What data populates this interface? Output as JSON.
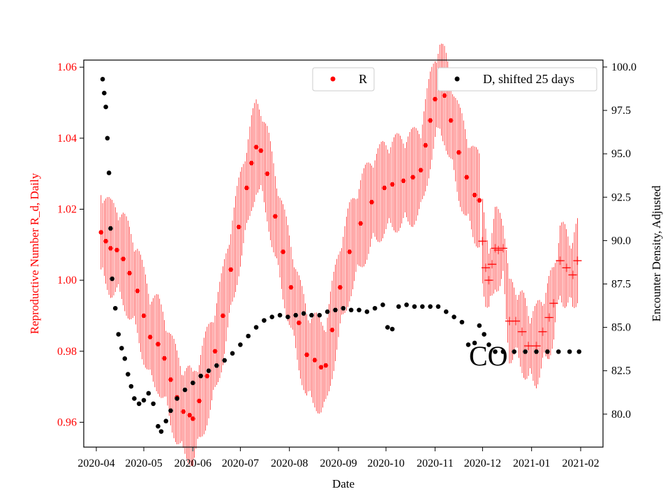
{
  "chart_data": {
    "type": "scatter",
    "xlabel": "Date",
    "ylabel_left": "Reproductive Number R_d, Daily",
    "ylabel_right": "Encounter Density, Adjusted",
    "annotation": "CO",
    "x_range": [
      "2020-04-01",
      "2021-02-01"
    ],
    "ylim_left": [
      0.953,
      1.062
    ],
    "ylim_right": [
      78.1,
      100.4
    ],
    "x_ticks": [
      "2020-04",
      "2020-05",
      "2020-06",
      "2020-07",
      "2020-08",
      "2020-09",
      "2020-10",
      "2020-11",
      "2020-12",
      "2021-01",
      "2021-02"
    ],
    "y_ticks_left": [
      0.96,
      0.98,
      1.0,
      1.02,
      1.04,
      1.06
    ],
    "y_ticks_right": [
      80.0,
      82.5,
      85.0,
      87.5,
      90.0,
      92.5,
      95.0,
      97.5,
      100.0
    ],
    "colors": {
      "R": "#ff0000",
      "D": "#000000",
      "axis_left": "#ff0000"
    },
    "legend": {
      "R": "R",
      "D": "D, shifted 25 days",
      "placement": "top"
    },
    "series": [
      {
        "name": "R",
        "axis": "left",
        "marker": "dot",
        "points": [
          [
            "2020-04-04",
            1.0135
          ],
          [
            "2020-04-07",
            1.011
          ],
          [
            "2020-04-10",
            1.009
          ],
          [
            "2020-04-14",
            1.0085
          ],
          [
            "2020-04-18",
            1.006
          ],
          [
            "2020-04-22",
            1.002
          ],
          [
            "2020-04-27",
            0.997
          ],
          [
            "2020-05-01",
            0.99
          ],
          [
            "2020-05-05",
            0.984
          ],
          [
            "2020-05-10",
            0.982
          ],
          [
            "2020-05-14",
            0.978
          ],
          [
            "2020-05-18",
            0.972
          ],
          [
            "2020-05-22",
            0.967
          ],
          [
            "2020-05-26",
            0.963
          ],
          [
            "2020-05-30",
            0.962
          ],
          [
            "2020-06-01",
            0.961
          ],
          [
            "2020-06-05",
            0.966
          ],
          [
            "2020-06-10",
            0.973
          ],
          [
            "2020-06-15",
            0.98
          ],
          [
            "2020-06-20",
            0.99
          ],
          [
            "2020-06-25",
            1.003
          ],
          [
            "2020-06-30",
            1.015
          ],
          [
            "2020-07-05",
            1.026
          ],
          [
            "2020-07-08",
            1.033
          ],
          [
            "2020-07-11",
            1.0375
          ],
          [
            "2020-07-14",
            1.0365
          ],
          [
            "2020-07-18",
            1.03
          ],
          [
            "2020-07-23",
            1.018
          ],
          [
            "2020-07-28",
            1.008
          ],
          [
            "2020-08-02",
            0.998
          ],
          [
            "2020-08-07",
            0.988
          ],
          [
            "2020-08-12",
            0.979
          ],
          [
            "2020-08-17",
            0.9775
          ],
          [
            "2020-08-21",
            0.9755
          ],
          [
            "2020-08-24",
            0.976
          ],
          [
            "2020-08-28",
            0.986
          ],
          [
            "2020-09-02",
            0.998
          ],
          [
            "2020-09-08",
            1.008
          ],
          [
            "2020-09-15",
            1.016
          ],
          [
            "2020-09-22",
            1.022
          ],
          [
            "2020-09-30",
            1.026
          ],
          [
            "2020-10-05",
            1.027
          ],
          [
            "2020-10-12",
            1.028
          ],
          [
            "2020-10-18",
            1.029
          ],
          [
            "2020-10-23",
            1.031
          ],
          [
            "2020-10-26",
            1.038
          ],
          [
            "2020-10-29",
            1.045
          ],
          [
            "2020-11-01",
            1.051
          ],
          [
            "2020-11-04",
            1.0545
          ],
          [
            "2020-11-07",
            1.052
          ],
          [
            "2020-11-11",
            1.045
          ],
          [
            "2020-11-16",
            1.036
          ],
          [
            "2020-11-21",
            1.029
          ],
          [
            "2020-11-26",
            1.024
          ],
          [
            "2020-11-29",
            1.0225
          ]
        ]
      },
      {
        "name": "R (cross markers)",
        "axis": "left",
        "marker": "plus",
        "points": [
          [
            "2020-12-01",
            1.011
          ],
          [
            "2020-12-03",
            1.0035
          ],
          [
            "2020-12-05",
            1.0
          ],
          [
            "2020-12-07",
            1.0045
          ],
          [
            "2020-12-09",
            1.009
          ],
          [
            "2020-12-11",
            1.0085
          ],
          [
            "2020-12-14",
            1.009
          ],
          [
            "2020-12-18",
            0.9885
          ],
          [
            "2020-12-22",
            0.9885
          ],
          [
            "2020-12-26",
            0.9855
          ],
          [
            "2020-12-30",
            0.9815
          ],
          [
            "2021-01-04",
            0.9815
          ],
          [
            "2021-01-08",
            0.9855
          ],
          [
            "2021-01-12",
            0.9895
          ],
          [
            "2021-01-15",
            0.9935
          ],
          [
            "2021-01-19",
            1.0055
          ],
          [
            "2021-01-23",
            1.0035
          ],
          [
            "2021-01-27",
            1.0015
          ],
          [
            "2021-01-30",
            1.0055
          ]
        ]
      },
      {
        "name": "D, shifted 25 days",
        "axis": "right",
        "marker": "dot",
        "points": [
          [
            "2020-04-05",
            99.3
          ],
          [
            "2020-04-06",
            98.5
          ],
          [
            "2020-04-07",
            97.7
          ],
          [
            "2020-04-08",
            95.9
          ],
          [
            "2020-04-09",
            93.9
          ],
          [
            "2020-04-10",
            90.7
          ],
          [
            "2020-04-11",
            87.8
          ],
          [
            "2020-04-13",
            86.1
          ],
          [
            "2020-04-15",
            84.6
          ],
          [
            "2020-04-17",
            83.8
          ],
          [
            "2020-04-19",
            83.2
          ],
          [
            "2020-04-21",
            82.3
          ],
          [
            "2020-04-23",
            81.6
          ],
          [
            "2020-04-25",
            80.9
          ],
          [
            "2020-04-28",
            80.6
          ],
          [
            "2020-05-01",
            80.8
          ],
          [
            "2020-05-04",
            81.2
          ],
          [
            "2020-05-07",
            80.6
          ],
          [
            "2020-05-10",
            79.3
          ],
          [
            "2020-05-12",
            79.0
          ],
          [
            "2020-05-15",
            79.6
          ],
          [
            "2020-05-18",
            80.2
          ],
          [
            "2020-05-22",
            80.9
          ],
          [
            "2020-05-27",
            81.4
          ],
          [
            "2020-06-01",
            81.8
          ],
          [
            "2020-06-06",
            82.2
          ],
          [
            "2020-06-11",
            82.5
          ],
          [
            "2020-06-16",
            82.8
          ],
          [
            "2020-06-21",
            83.1
          ],
          [
            "2020-06-26",
            83.5
          ],
          [
            "2020-07-01",
            84.0
          ],
          [
            "2020-07-06",
            84.5
          ],
          [
            "2020-07-11",
            85.0
          ],
          [
            "2020-07-16",
            85.4
          ],
          [
            "2020-07-21",
            85.6
          ],
          [
            "2020-07-26",
            85.7
          ],
          [
            "2020-07-31",
            85.6
          ],
          [
            "2020-08-05",
            85.7
          ],
          [
            "2020-08-10",
            85.8
          ],
          [
            "2020-08-15",
            85.7
          ],
          [
            "2020-08-20",
            85.7
          ],
          [
            "2020-08-25",
            85.9
          ],
          [
            "2020-08-30",
            86.0
          ],
          [
            "2020-09-04",
            86.1
          ],
          [
            "2020-09-09",
            86.0
          ],
          [
            "2020-09-14",
            86.0
          ],
          [
            "2020-09-19",
            85.9
          ],
          [
            "2020-09-24",
            86.1
          ],
          [
            "2020-09-29",
            86.3
          ],
          [
            "2020-10-02",
            85.0
          ],
          [
            "2020-10-05",
            84.9
          ],
          [
            "2020-10-09",
            86.2
          ],
          [
            "2020-10-14",
            86.3
          ],
          [
            "2020-10-19",
            86.2
          ],
          [
            "2020-10-24",
            86.2
          ],
          [
            "2020-10-29",
            86.2
          ],
          [
            "2020-11-03",
            86.2
          ],
          [
            "2020-11-08",
            85.9
          ],
          [
            "2020-11-13",
            85.6
          ],
          [
            "2020-11-18",
            85.3
          ],
          [
            "2020-11-22",
            84.0
          ],
          [
            "2020-11-26",
            84.1
          ],
          [
            "2020-11-29",
            85.1
          ],
          [
            "2020-12-02",
            84.6
          ],
          [
            "2020-12-05",
            84.0
          ],
          [
            "2020-12-09",
            83.6
          ],
          [
            "2020-12-14",
            83.6
          ],
          [
            "2020-12-21",
            83.6
          ],
          [
            "2020-12-28",
            83.6
          ],
          [
            "2021-01-04",
            83.6
          ],
          [
            "2021-01-11",
            83.6
          ],
          [
            "2021-01-18",
            83.6
          ],
          [
            "2021-01-25",
            83.6
          ],
          [
            "2021-01-31",
            83.6
          ]
        ]
      }
    ]
  }
}
